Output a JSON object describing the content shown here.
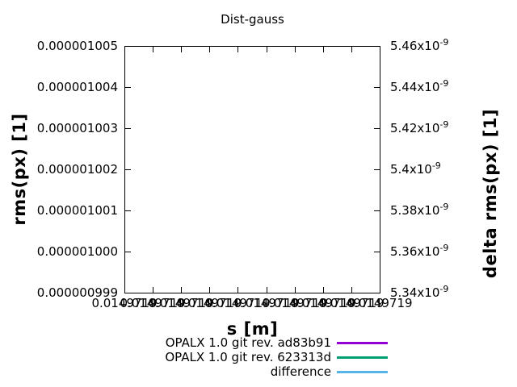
{
  "title": "Dist-gauss",
  "chart_data": {
    "type": "line",
    "title": "Dist-gauss",
    "xlabel": "s [m]",
    "ylabel": "rms(px) [1]",
    "y2label": "delta rms(px) [1]",
    "grid": false,
    "plot_empty": true,
    "legend_position": "below-plot-right",
    "ylim": [
      9.99e-07,
      1.005e-06
    ],
    "y2lim": [
      5.34e-09,
      5.46e-09
    ],
    "y_ticks": [
      "0.000001005",
      "0.000001004",
      "0.000001003",
      "0.000001002",
      "0.000001001",
      "0.000001000",
      "0.000000999"
    ],
    "y2_ticks": [
      {
        "m": "5.46x10",
        "e": "-9"
      },
      {
        "m": "5.44x10",
        "e": "-9"
      },
      {
        "m": "5.42x10",
        "e": "-9"
      },
      {
        "m": "5.4x10",
        "e": "-9"
      },
      {
        "m": "5.38x10",
        "e": "-9"
      },
      {
        "m": "5.36x10",
        "e": "-9"
      },
      {
        "m": "5.34x10",
        "e": "-9"
      }
    ],
    "x_tick_label": "0.0149719",
    "x_tick_count": 10,
    "series": [
      {
        "name": "OPALX 1.0 git rev. ad83b91",
        "color": "#9400d3",
        "values": []
      },
      {
        "name": "OPALX 1.0 git rev. 623313d",
        "color": "#009e73",
        "values": []
      },
      {
        "name": "difference",
        "color": "#56b4e9",
        "values": []
      }
    ]
  }
}
